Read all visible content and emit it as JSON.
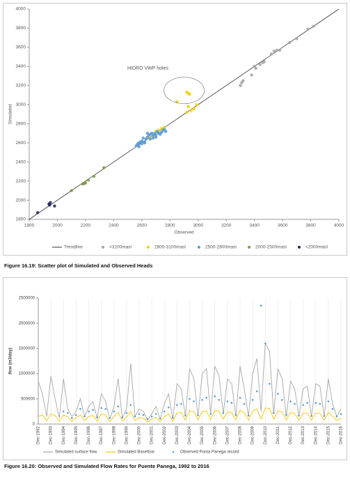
{
  "chart_data": [
    {
      "type": "scatter",
      "caption": "Figure 16.19: Scatter plot of Simulated and Observed Heads",
      "xlabel": "Observed",
      "ylabel": "Simulated",
      "annotation": "HIDRO VWP holes",
      "xlim": [
        1800,
        4000
      ],
      "xticks": [
        1800,
        2000,
        2200,
        2400,
        2600,
        2800,
        3000,
        3200,
        3400,
        3600,
        3800,
        4000
      ],
      "ylim": [
        1800,
        4000
      ],
      "yticks": [
        1800,
        2000,
        2200,
        2400,
        2600,
        2800,
        3000,
        3200,
        3400,
        3600,
        3800,
        4000
      ],
      "legend": "bottom",
      "series": [
        {
          "name": "Trendline",
          "style": "line",
          "color": "#333333",
          "x": [
            1800,
            4000
          ],
          "values": [
            1800,
            4000
          ]
        },
        {
          "name": ">3100masl",
          "style": "dots",
          "color": "#a6a6a6",
          "x": [
            3300,
            3310,
            3320,
            3380,
            3400,
            3410,
            3440,
            3460,
            3470,
            3520,
            3540,
            3560,
            3580,
            3650,
            3700,
            3780,
            3820
          ],
          "values": [
            3200,
            3230,
            3250,
            3310,
            3400,
            3380,
            3420,
            3440,
            3450,
            3530,
            3560,
            3570,
            3570,
            3650,
            3690,
            3790,
            3820
          ]
        },
        {
          "name": "2800-3100masl",
          "style": "dots",
          "color": "#f2d000",
          "x": [
            2650,
            2680,
            2700,
            2720,
            2740,
            2760,
            2850,
            2920,
            2930,
            2940,
            2930,
            2950,
            2970,
            2990,
            2920
          ],
          "values": [
            2650,
            2670,
            2720,
            2730,
            2750,
            2760,
            3030,
            3130,
            3120,
            3110,
            2980,
            2940,
            2960,
            3000,
            2920
          ]
        },
        {
          "name": "2500-2800masl",
          "style": "dots",
          "color": "#5b9bd5",
          "x": [
            2560,
            2570,
            2580,
            2590,
            2600,
            2610,
            2620,
            2630,
            2640,
            2650,
            2660,
            2670,
            2680,
            2690,
            2700,
            2710,
            2720,
            2730,
            2740,
            2750,
            2760,
            2770,
            2600,
            2620,
            2640,
            2660,
            2680,
            2700,
            2720,
            2580
          ],
          "values": [
            2570,
            2590,
            2600,
            2610,
            2620,
            2650,
            2600,
            2640,
            2660,
            2680,
            2690,
            2700,
            2650,
            2700,
            2680,
            2720,
            2700,
            2690,
            2710,
            2730,
            2740,
            2720,
            2590,
            2610,
            2700,
            2640,
            2680,
            2660,
            2700,
            2560
          ]
        },
        {
          "name": "2000-2500masl",
          "style": "dots",
          "color": "#7f9a46",
          "x": [
            2100,
            2180,
            2190,
            2200,
            2220,
            2260,
            2330
          ],
          "values": [
            2100,
            2170,
            2175,
            2180,
            2210,
            2250,
            2340
          ]
        },
        {
          "name": "<2000masl",
          "style": "dots",
          "color": "#1f2a5a",
          "x": [
            1860,
            1940,
            1945,
            1950,
            1980
          ],
          "values": [
            1870,
            1960,
            1950,
            1975,
            1940
          ]
        }
      ]
    },
    {
      "type": "line",
      "caption": "Figure 16.20: Observed and Simulated Flow Rates for Puente Panega, 1992 to 2016",
      "ylabel": "flow (m3/day)",
      "ylim": [
        0,
        2500000
      ],
      "yticks": [
        0,
        500000,
        1000000,
        1500000,
        2000000,
        2500000
      ],
      "grid": true,
      "legend": "bottom",
      "xticks": [
        "Dec-1992",
        "Dec-1993",
        "Dec-1994",
        "Dec-1995",
        "Dec-1996",
        "Dec-1997",
        "Dec-1998",
        "Dec-1999",
        "Dec-2000",
        "Dec-2001",
        "Dec-2002",
        "Dec-2003",
        "Dec-2004",
        "Dec-2005",
        "Dec-2006",
        "Dec-2007",
        "Dec-2008",
        "Dec-2009",
        "Dec-2010",
        "Dec-2011",
        "Dec-2012",
        "Dec-2013",
        "Dec-2014",
        "Dec-2015",
        "Dec-2016"
      ],
      "x": [
        "Dec-1992",
        "Apr-1993",
        "Aug-1993",
        "Dec-1993",
        "Apr-1994",
        "Aug-1994",
        "Dec-1994",
        "Apr-1995",
        "Aug-1995",
        "Dec-1995",
        "Apr-1996",
        "Aug-1996",
        "Dec-1996",
        "Apr-1997",
        "Aug-1997",
        "Dec-1997",
        "Apr-1998",
        "Aug-1998",
        "Dec-1998",
        "Apr-1999",
        "Aug-1999",
        "Dec-1999",
        "Apr-2000",
        "Aug-2000",
        "Dec-2000",
        "Apr-2001",
        "Aug-2001",
        "Dec-2001",
        "Apr-2002",
        "Aug-2002",
        "Dec-2002",
        "Apr-2003",
        "Aug-2003",
        "Dec-2003",
        "Apr-2004",
        "Aug-2004",
        "Dec-2004",
        "Apr-2005",
        "Aug-2005",
        "Dec-2005",
        "Apr-2006",
        "Aug-2006",
        "Dec-2006",
        "Apr-2007",
        "Aug-2007",
        "Dec-2007",
        "Apr-2008",
        "Aug-2008",
        "Dec-2008",
        "Apr-2009",
        "Aug-2009",
        "Dec-2009",
        "Apr-2010",
        "Aug-2010",
        "Dec-2010",
        "Apr-2011",
        "Aug-2011",
        "Dec-2011",
        "Apr-2012",
        "Aug-2012",
        "Dec-2012",
        "Apr-2013",
        "Aug-2013",
        "Dec-2013",
        "Apr-2014",
        "Aug-2014",
        "Dec-2014",
        "Apr-2015",
        "Aug-2015",
        "Dec-2015",
        "Apr-2016",
        "Aug-2016",
        "Dec-2016"
      ],
      "series": [
        {
          "name": "Simulated surface flow",
          "style": "line",
          "color": "#a6a6a6",
          "values": [
            850000,
            600000,
            150000,
            950000,
            500000,
            120000,
            900000,
            300000,
            150000,
            250000,
            500000,
            150000,
            350000,
            450000,
            120000,
            600000,
            450000,
            100000,
            350000,
            900000,
            120000,
            300000,
            1200000,
            150000,
            300000,
            250000,
            80000,
            200000,
            350000,
            100000,
            400000,
            600000,
            100000,
            800000,
            700000,
            150000,
            1100000,
            900000,
            150000,
            1000000,
            1100000,
            200000,
            1150000,
            950000,
            200000,
            900000,
            800000,
            150000,
            1150000,
            700000,
            150000,
            1000000,
            1300000,
            250000,
            1600000,
            1450000,
            200000,
            1100000,
            900000,
            150000,
            850000,
            700000,
            150000,
            700000,
            750000,
            150000,
            800000,
            750000,
            150000,
            900000,
            400000,
            150000,
            300000
          ]
        },
        {
          "name": "Simulated Baseflow",
          "style": "line",
          "color": "#f5c400",
          "values": [
            150000,
            180000,
            70000,
            200000,
            170000,
            60000,
            180000,
            150000,
            60000,
            120000,
            180000,
            70000,
            150000,
            170000,
            60000,
            200000,
            180000,
            50000,
            150000,
            230000,
            60000,
            140000,
            250000,
            70000,
            130000,
            120000,
            40000,
            100000,
            130000,
            50000,
            150000,
            200000,
            60000,
            220000,
            230000,
            80000,
            260000,
            250000,
            80000,
            250000,
            260000,
            90000,
            270000,
            250000,
            100000,
            240000,
            230000,
            80000,
            270000,
            220000,
            80000,
            260000,
            300000,
            100000,
            320000,
            310000,
            100000,
            260000,
            240000,
            80000,
            230000,
            210000,
            80000,
            210000,
            220000,
            80000,
            220000,
            210000,
            80000,
            230000,
            160000,
            70000,
            120000
          ]
        },
        {
          "name": "Observed Punta Panega record",
          "style": "dots",
          "color": "#5b9bd5",
          "values": [
            null,
            null,
            null,
            null,
            null,
            null,
            250000,
            220000,
            120000,
            180000,
            300000,
            150000,
            250000,
            280000,
            130000,
            320000,
            300000,
            120000,
            250000,
            350000,
            130000,
            220000,
            380000,
            150000,
            200000,
            180000,
            100000,
            150000,
            200000,
            110000,
            250000,
            330000,
            130000,
            380000,
            400000,
            170000,
            500000,
            450000,
            180000,
            480000,
            520000,
            200000,
            550000,
            480000,
            220000,
            450000,
            420000,
            180000,
            520000,
            400000,
            170000,
            480000,
            650000,
            2350000,
            1600000,
            800000,
            220000,
            600000,
            480000,
            180000,
            450000,
            400000,
            170000,
            380000,
            420000,
            160000,
            420000,
            400000,
            160000,
            450000,
            300000,
            150000,
            200000
          ]
        }
      ]
    }
  ]
}
